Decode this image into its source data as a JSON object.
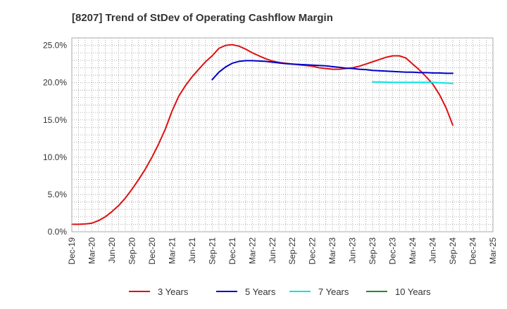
{
  "chart_data": {
    "type": "line",
    "title": "[8207]  Trend of StDev of Operating Cashflow Margin",
    "xlabel": "",
    "ylabel": "",
    "x_ticks": [
      "Dec-19",
      "Mar-20",
      "Jun-20",
      "Sep-20",
      "Dec-20",
      "Mar-21",
      "Jun-21",
      "Sep-21",
      "Dec-21",
      "Mar-22",
      "Jun-22",
      "Sep-22",
      "Dec-22",
      "Mar-23",
      "Jun-23",
      "Sep-23",
      "Dec-23",
      "Mar-24",
      "Jun-24",
      "Sep-24",
      "Dec-24",
      "Mar-25"
    ],
    "y_ticks": [
      "0.0%",
      "5.0%",
      "10.0%",
      "15.0%",
      "20.0%",
      "25.0%"
    ],
    "ylim": [
      0,
      26
    ],
    "grid": true,
    "legend_position": "bottom",
    "series": [
      {
        "name": "3 Years",
        "color": "#dd1111",
        "points": [
          [
            "Dec-19",
            1.0
          ],
          [
            "Jan-20",
            1.0
          ],
          [
            "Feb-20",
            1.05
          ],
          [
            "Mar-20",
            1.15
          ],
          [
            "Apr-20",
            1.5
          ],
          [
            "May-20",
            2.0
          ],
          [
            "Jun-20",
            2.7
          ],
          [
            "Jul-20",
            3.5
          ],
          [
            "Aug-20",
            4.5
          ],
          [
            "Sep-20",
            5.7
          ],
          [
            "Oct-20",
            7.0
          ],
          [
            "Nov-20",
            8.4
          ],
          [
            "Dec-20",
            10.0
          ],
          [
            "Jan-21",
            11.8
          ],
          [
            "Feb-21",
            13.8
          ],
          [
            "Mar-21",
            16.2
          ],
          [
            "Apr-21",
            18.2
          ],
          [
            "May-21",
            19.6
          ],
          [
            "Jun-21",
            20.8
          ],
          [
            "Jul-21",
            21.8
          ],
          [
            "Aug-21",
            22.8
          ],
          [
            "Sep-21",
            23.6
          ],
          [
            "Oct-21",
            24.6
          ],
          [
            "Nov-21",
            25.0
          ],
          [
            "Dec-21",
            25.1
          ],
          [
            "Jan-22",
            24.9
          ],
          [
            "Feb-22",
            24.5
          ],
          [
            "Mar-22",
            24.0
          ],
          [
            "Apr-22",
            23.6
          ],
          [
            "May-22",
            23.2
          ],
          [
            "Jun-22",
            22.9
          ],
          [
            "Jul-22",
            22.7
          ],
          [
            "Aug-22",
            22.6
          ],
          [
            "Sep-22",
            22.5
          ],
          [
            "Oct-22",
            22.4
          ],
          [
            "Nov-22",
            22.3
          ],
          [
            "Dec-22",
            22.2
          ],
          [
            "Jan-23",
            22.0
          ],
          [
            "Feb-23",
            21.9
          ],
          [
            "Mar-23",
            21.8
          ],
          [
            "Apr-23",
            21.8
          ],
          [
            "May-23",
            21.9
          ],
          [
            "Jun-23",
            22.0
          ],
          [
            "Jul-23",
            22.2
          ],
          [
            "Aug-23",
            22.5
          ],
          [
            "Sep-23",
            22.8
          ],
          [
            "Oct-23",
            23.1
          ],
          [
            "Nov-23",
            23.4
          ],
          [
            "Dec-23",
            23.6
          ],
          [
            "Jan-24",
            23.6
          ],
          [
            "Feb-24",
            23.3
          ],
          [
            "Mar-24",
            22.5
          ],
          [
            "Apr-24",
            21.7
          ],
          [
            "May-24",
            20.8
          ],
          [
            "Jun-24",
            19.8
          ],
          [
            "Jul-24",
            18.4
          ],
          [
            "Aug-24",
            16.6
          ],
          [
            "Sep-24",
            14.3
          ]
        ]
      },
      {
        "name": "5 Years",
        "color": "#0000cc",
        "points": [
          [
            "Sep-21",
            20.4
          ],
          [
            "Oct-21",
            21.4
          ],
          [
            "Nov-21",
            22.1
          ],
          [
            "Dec-21",
            22.6
          ],
          [
            "Jan-22",
            22.85
          ],
          [
            "Feb-22",
            22.95
          ],
          [
            "Mar-22",
            22.95
          ],
          [
            "Apr-22",
            22.9
          ],
          [
            "May-22",
            22.85
          ],
          [
            "Jun-22",
            22.75
          ],
          [
            "Jul-22",
            22.65
          ],
          [
            "Aug-22",
            22.55
          ],
          [
            "Sep-22",
            22.5
          ],
          [
            "Oct-22",
            22.45
          ],
          [
            "Nov-22",
            22.4
          ],
          [
            "Dec-22",
            22.35
          ],
          [
            "Jan-23",
            22.3
          ],
          [
            "Feb-23",
            22.25
          ],
          [
            "Mar-23",
            22.15
          ],
          [
            "Apr-23",
            22.05
          ],
          [
            "May-23",
            21.95
          ],
          [
            "Jun-23",
            21.9
          ],
          [
            "Jul-23",
            21.8
          ],
          [
            "Aug-23",
            21.75
          ],
          [
            "Sep-23",
            21.65
          ],
          [
            "Oct-23",
            21.6
          ],
          [
            "Nov-23",
            21.55
          ],
          [
            "Dec-23",
            21.5
          ],
          [
            "Jan-24",
            21.45
          ],
          [
            "Feb-24",
            21.4
          ],
          [
            "Mar-24",
            21.4
          ],
          [
            "Apr-24",
            21.35
          ],
          [
            "May-24",
            21.35
          ],
          [
            "Jun-24",
            21.3
          ],
          [
            "Jul-24",
            21.3
          ],
          [
            "Aug-24",
            21.25
          ],
          [
            "Sep-24",
            21.25
          ]
        ]
      },
      {
        "name": "7 Years",
        "color": "#00e5e5",
        "points": [
          [
            "Sep-23",
            20.1
          ],
          [
            "Dec-23",
            20.05
          ],
          [
            "Mar-24",
            20.05
          ],
          [
            "Jun-24",
            20.05
          ],
          [
            "Sep-24",
            19.9
          ]
        ]
      },
      {
        "name": "10 Years",
        "color": "#228b22",
        "points": []
      }
    ]
  }
}
